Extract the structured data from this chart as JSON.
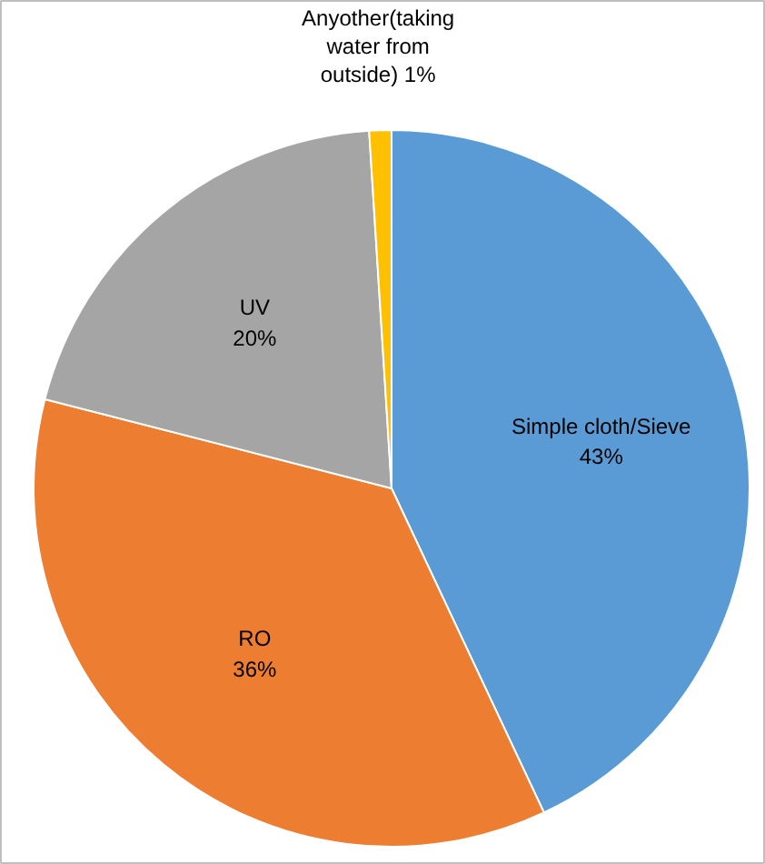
{
  "chart_data": {
    "type": "pie",
    "categories": [
      "Simple cloth/Sieve",
      "RO",
      "UV",
      "Anyother(taking water from outside)"
    ],
    "values": [
      43,
      36,
      20,
      1
    ],
    "value_labels": [
      "43%",
      "36%",
      "20%",
      "1%"
    ],
    "colors": [
      "#5b9bd5",
      "#ed7d31",
      "#a5a5a5",
      "#ffc000"
    ]
  }
}
